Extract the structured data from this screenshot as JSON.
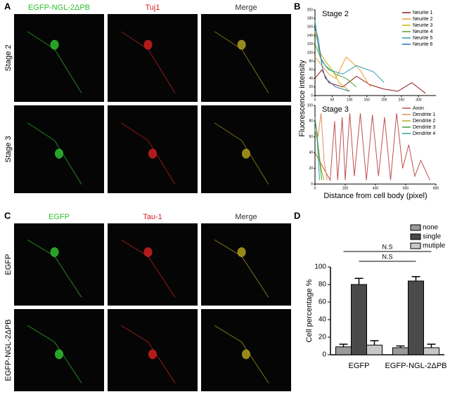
{
  "panel_labels": [
    "A",
    "B",
    "C",
    "D"
  ],
  "panel_a": {
    "columns": [
      "EGFP-NGL-2ΔPB",
      "Tuj1",
      "Merge"
    ],
    "rows": [
      "Stage 2",
      "Stage 3"
    ]
  },
  "panel_c": {
    "columns": [
      "EGFP",
      "Tau-1",
      "Merge"
    ],
    "rows": [
      "EGFP",
      "EGFP-NGL-2ΔPB"
    ]
  },
  "chart_data": [
    {
      "type": "line",
      "title": "Stage 2",
      "y_label": "Fluorescence intensity",
      "xlim": [
        0,
        350
      ],
      "xticks": [
        0,
        50,
        100,
        150,
        200,
        250,
        300
      ],
      "ylim": [
        0,
        200
      ],
      "yticks": [
        0,
        20,
        40,
        60,
        80,
        100,
        120,
        140,
        160,
        180,
        200
      ],
      "series": [
        {
          "name": "Neurite 1",
          "color": "#8b1a1a",
          "x": [
            0,
            20,
            40,
            80,
            120,
            160,
            200,
            240,
            280,
            320
          ],
          "values": [
            40,
            60,
            30,
            20,
            45,
            25,
            15,
            10,
            30,
            5
          ]
        },
        {
          "name": "Neurite 2",
          "color": "#f0a030",
          "x": [
            0,
            20,
            40,
            60,
            90,
            130,
            160
          ],
          "values": [
            90,
            70,
            50,
            40,
            90,
            60,
            20
          ]
        },
        {
          "name": "Neurite 3",
          "color": "#c8b400",
          "x": [
            0,
            15,
            30,
            50,
            70,
            100
          ],
          "values": [
            150,
            100,
            80,
            60,
            30,
            10
          ]
        },
        {
          "name": "Neurite 4",
          "color": "#5aa02c",
          "x": [
            0,
            15,
            30,
            60,
            90,
            120
          ],
          "values": [
            120,
            90,
            70,
            50,
            40,
            20
          ]
        },
        {
          "name": "Neurite 5",
          "color": "#2aa0b0",
          "x": [
            0,
            10,
            20,
            40,
            80,
            120,
            170,
            200
          ],
          "values": [
            175,
            110,
            80,
            60,
            50,
            70,
            55,
            30
          ]
        },
        {
          "name": "Neurite 6",
          "color": "#2a6fb0",
          "x": [
            0,
            10,
            20,
            30,
            60,
            100
          ],
          "values": [
            160,
            130,
            70,
            40,
            20,
            10
          ]
        }
      ]
    },
    {
      "type": "line",
      "title": "Stage 3",
      "x_label": "Distance  from cell body (pixel)",
      "xlim": [
        0,
        800
      ],
      "xticks": [
        0,
        200,
        400,
        600,
        800
      ],
      "ylim": [
        0,
        100
      ],
      "yticks": [
        0,
        20,
        40,
        60,
        80,
        100
      ],
      "series": [
        {
          "name": "Axon",
          "color": "#c05050",
          "x": [
            0,
            100,
            130,
            150,
            180,
            200,
            230,
            260,
            300,
            340,
            380,
            420,
            460,
            500,
            540,
            580,
            620,
            660,
            700,
            760
          ],
          "values": [
            40,
            5,
            80,
            5,
            85,
            5,
            90,
            10,
            90,
            5,
            88,
            10,
            85,
            5,
            90,
            20,
            50,
            10,
            30,
            5
          ]
        },
        {
          "name": "Dendrite 1",
          "color": "#e09060",
          "x": [
            0,
            20,
            40,
            60,
            80
          ],
          "values": [
            80,
            60,
            90,
            30,
            5
          ]
        },
        {
          "name": "Dendrite 2",
          "color": "#b0b020",
          "x": [
            0,
            20,
            40,
            60
          ],
          "values": [
            70,
            50,
            20,
            5
          ]
        },
        {
          "name": "Dendrite 3",
          "color": "#40a040",
          "x": [
            0,
            15,
            30,
            45
          ],
          "values": [
            85,
            60,
            30,
            5
          ]
        },
        {
          "name": "Dendrite 4",
          "color": "#30a0a0",
          "x": [
            0,
            10,
            20,
            30
          ],
          "values": [
            80,
            70,
            40,
            5
          ]
        }
      ]
    },
    {
      "type": "bar",
      "y_label": "Cell percentage %",
      "categories": [
        "EGFP",
        "EGFP-NGL-2ΔPB"
      ],
      "ylim": [
        0,
        100
      ],
      "yticks": [
        0,
        20,
        40,
        60,
        80,
        100
      ],
      "annotations": [
        "N.S",
        "N.S"
      ],
      "series": [
        {
          "name": "none",
          "color": "#9a9a9a",
          "values": [
            9,
            8
          ],
          "errors": [
            3,
            2
          ]
        },
        {
          "name": "single",
          "color": "#4a4a4a",
          "values": [
            80,
            84
          ],
          "errors": [
            7,
            5
          ]
        },
        {
          "name": "mutiple",
          "color": "#c8c8c8",
          "values": [
            11,
            8
          ],
          "errors": [
            5,
            4
          ]
        }
      ]
    }
  ]
}
